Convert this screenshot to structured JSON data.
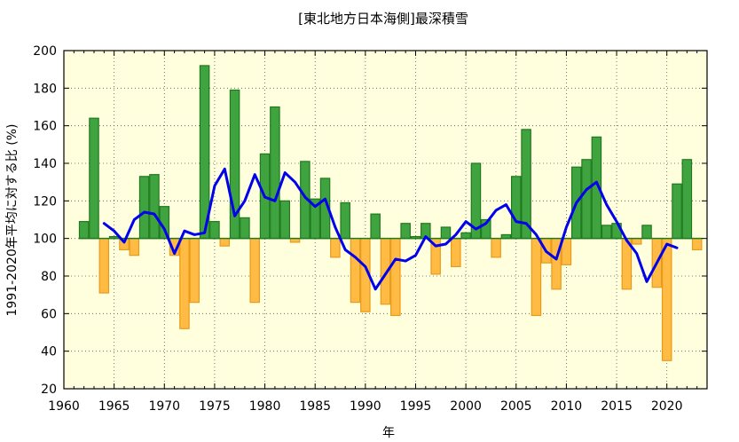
{
  "chart_data": {
    "type": "bar",
    "title": "[東北地方日本海側]最深積雪",
    "xlabel": "年",
    "ylabel": "1991-2020年平均に対する比 (%)",
    "xlim": [
      1960,
      2024
    ],
    "ylim": [
      20,
      200
    ],
    "baseline": 100,
    "grid": true,
    "x_ticks": [
      "1960",
      "1965",
      "1970",
      "1975",
      "1980",
      "1985",
      "1990",
      "1995",
      "2000",
      "2005",
      "2010",
      "2015",
      "2020"
    ],
    "y_ticks": [
      "20",
      "40",
      "60",
      "80",
      "100",
      "120",
      "140",
      "160",
      "180",
      "200"
    ],
    "colors": {
      "above": "#3fa43f",
      "above_edge": "#1f7a1f",
      "below": "#ffbb44",
      "below_edge": "#e89a1a",
      "line": "#0000ee",
      "plot_bg": "#ffffdd"
    },
    "bars": {
      "years": [
        1962,
        1963,
        1964,
        1965,
        1966,
        1967,
        1968,
        1969,
        1970,
        1971,
        1972,
        1973,
        1974,
        1975,
        1976,
        1977,
        1978,
        1979,
        1980,
        1981,
        1982,
        1983,
        1984,
        1985,
        1986,
        1987,
        1988,
        1989,
        1990,
        1991,
        1992,
        1993,
        1994,
        1995,
        1996,
        1997,
        1998,
        1999,
        2000,
        2001,
        2002,
        2003,
        2004,
        2005,
        2006,
        2007,
        2008,
        2009,
        2010,
        2011,
        2012,
        2013,
        2014,
        2015,
        2016,
        2017,
        2018,
        2019,
        2020,
        2021,
        2022,
        2023
      ],
      "values": [
        109,
        164,
        71,
        101,
        94,
        91,
        133,
        134,
        117,
        91,
        52,
        66,
        192,
        109,
        96,
        179,
        111,
        66,
        145,
        170,
        120,
        98,
        141,
        121,
        132,
        90,
        119,
        66,
        61,
        113,
        65,
        59,
        108,
        101,
        108,
        81,
        106,
        85,
        103,
        140,
        110,
        90,
        102,
        133,
        158,
        59,
        87,
        73,
        86,
        138,
        142,
        154,
        107,
        108,
        73,
        97,
        107,
        74,
        35,
        129,
        142,
        94
      ]
    },
    "series": [
      {
        "x": [
          1964,
          1965,
          1966,
          1967,
          1968,
          1969,
          1970,
          1971,
          1972,
          1973,
          1974,
          1975,
          1976,
          1977,
          1978,
          1979,
          1980,
          1981,
          1982,
          1983,
          1984,
          1985,
          1986,
          1987,
          1988,
          1989,
          1990,
          1991,
          1992,
          1993,
          1994,
          1995,
          1996,
          1997,
          1998,
          1999,
          2000,
          2001,
          2002,
          2003,
          2004,
          2005,
          2006,
          2007,
          2008,
          2009,
          2010,
          2011,
          2012,
          2013,
          2014,
          2015,
          2016,
          2017,
          2018,
          2019,
          2020,
          2021
        ],
        "values": [
          108,
          104,
          98,
          110,
          114,
          113,
          105,
          92,
          104,
          102,
          103,
          128,
          137,
          112,
          120,
          134,
          122,
          120,
          135,
          130,
          122,
          117,
          121,
          106,
          94,
          90,
          85,
          73,
          81,
          89,
          88,
          91,
          101,
          96,
          97,
          102,
          109,
          105,
          108,
          115,
          118,
          109,
          108,
          102,
          93,
          89,
          106,
          119,
          126,
          130,
          118,
          109,
          99,
          92,
          77,
          87,
          97,
          95
        ]
      }
    ]
  }
}
